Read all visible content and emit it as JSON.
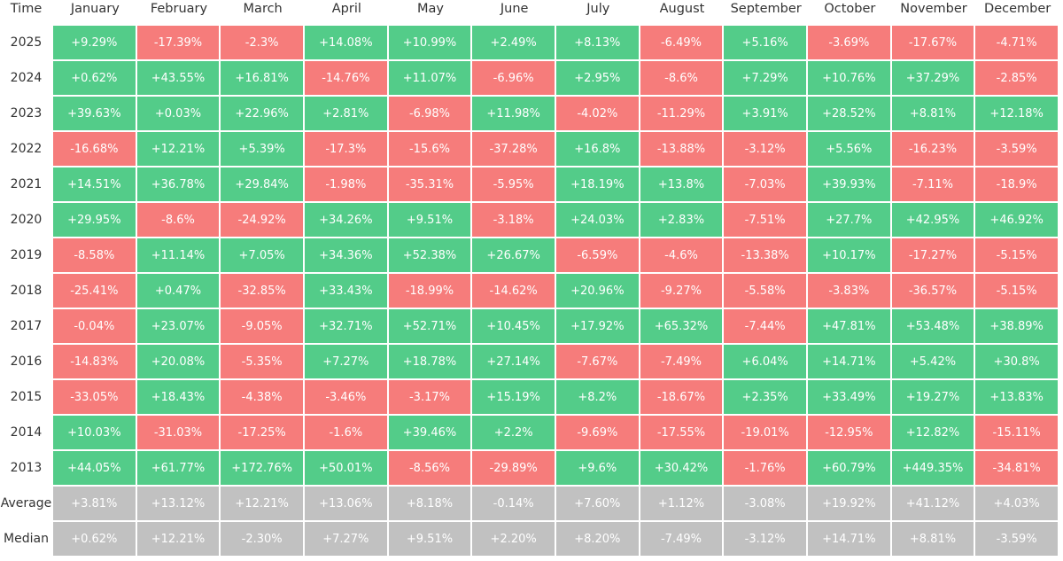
{
  "table": {
    "header": [
      "Time",
      "January",
      "February",
      "March",
      "April",
      "May",
      "June",
      "July",
      "August",
      "September",
      "October",
      "November",
      "December"
    ],
    "rows": [
      [
        "2025",
        "+9.29%",
        "-17.39%",
        "-2.3%",
        "+14.08%",
        "+10.99%",
        "+2.49%",
        "+8.13%",
        "-6.49%",
        "+5.16%",
        "-3.69%",
        "-17.67%",
        "-4.71%"
      ],
      [
        "2024",
        "+0.62%",
        "+43.55%",
        "+16.81%",
        "-14.76%",
        "+11.07%",
        "-6.96%",
        "+2.95%",
        "-8.6%",
        "+7.29%",
        "+10.76%",
        "+37.29%",
        "-2.85%"
      ],
      [
        "2023",
        "+39.63%",
        "+0.03%",
        "+22.96%",
        "+2.81%",
        "-6.98%",
        "+11.98%",
        "-4.02%",
        "-11.29%",
        "+3.91%",
        "+28.52%",
        "+8.81%",
        "+12.18%"
      ],
      [
        "2022",
        "-16.68%",
        "+12.21%",
        "+5.39%",
        "-17.3%",
        "-15.6%",
        "-37.28%",
        "+16.8%",
        "-13.88%",
        "-3.12%",
        "+5.56%",
        "-16.23%",
        "-3.59%"
      ],
      [
        "2021",
        "+14.51%",
        "+36.78%",
        "+29.84%",
        "-1.98%",
        "-35.31%",
        "-5.95%",
        "+18.19%",
        "+13.8%",
        "-7.03%",
        "+39.93%",
        "-7.11%",
        "-18.9%"
      ],
      [
        "2020",
        "+29.95%",
        "-8.6%",
        "-24.92%",
        "+34.26%",
        "+9.51%",
        "-3.18%",
        "+24.03%",
        "+2.83%",
        "-7.51%",
        "+27.7%",
        "+42.95%",
        "+46.92%"
      ],
      [
        "2019",
        "-8.58%",
        "+11.14%",
        "+7.05%",
        "+34.36%",
        "+52.38%",
        "+26.67%",
        "-6.59%",
        "-4.6%",
        "-13.38%",
        "+10.17%",
        "-17.27%",
        "-5.15%"
      ],
      [
        "2018",
        "-25.41%",
        "+0.47%",
        "-32.85%",
        "+33.43%",
        "-18.99%",
        "-14.62%",
        "+20.96%",
        "-9.27%",
        "-5.58%",
        "-3.83%",
        "-36.57%",
        "-5.15%"
      ],
      [
        "2017",
        "-0.04%",
        "+23.07%",
        "-9.05%",
        "+32.71%",
        "+52.71%",
        "+10.45%",
        "+17.92%",
        "+65.32%",
        "-7.44%",
        "+47.81%",
        "+53.48%",
        "+38.89%"
      ],
      [
        "2016",
        "-14.83%",
        "+20.08%",
        "-5.35%",
        "+7.27%",
        "+18.78%",
        "+27.14%",
        "-7.67%",
        "-7.49%",
        "+6.04%",
        "+14.71%",
        "+5.42%",
        "+30.8%"
      ],
      [
        "2015",
        "-33.05%",
        "+18.43%",
        "-4.38%",
        "-3.46%",
        "-3.17%",
        "+15.19%",
        "+8.2%",
        "-18.67%",
        "+2.35%",
        "+33.49%",
        "+19.27%",
        "+13.83%"
      ],
      [
        "2014",
        "+10.03%",
        "-31.03%",
        "-17.25%",
        "-1.6%",
        "+39.46%",
        "+2.2%",
        "-9.69%",
        "-17.55%",
        "-19.01%",
        "-12.95%",
        "+12.82%",
        "-15.11%"
      ],
      [
        "2013",
        "+44.05%",
        "+61.77%",
        "+172.76%",
        "+50.01%",
        "-8.56%",
        "-29.89%",
        "+9.6%",
        "+30.42%",
        "-1.76%",
        "+60.79%",
        "+449.35%",
        "-34.81%"
      ]
    ],
    "summary_rows": [
      [
        "Average",
        "+3.81%",
        "+13.12%",
        "+12.21%",
        "+13.06%",
        "+8.18%",
        "-0.14%",
        "+7.60%",
        "+1.12%",
        "-3.08%",
        "+19.92%",
        "+41.12%",
        "+4.03%"
      ],
      [
        "Median",
        "+0.62%",
        "+12.21%",
        "-2.30%",
        "+7.27%",
        "+9.51%",
        "+2.20%",
        "+8.20%",
        "-7.49%",
        "-3.12%",
        "+14.71%",
        "+8.81%",
        "-3.59%"
      ]
    ],
    "colors": {
      "positive": "#53cc89",
      "negative": "#f67c7b",
      "summary": "#c1c1c1"
    }
  }
}
